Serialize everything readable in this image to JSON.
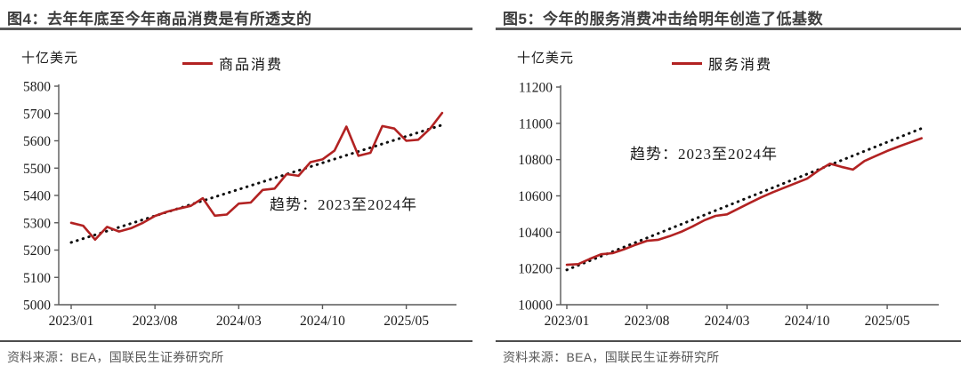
{
  "panels": [
    {
      "title": "图4：去年年底至今年商品消费是有所透支的",
      "unit_label": "十亿美元",
      "legend": "商品消费",
      "annotation": "趋势：2023至2024年",
      "source": "资料来源：BEA，国联民生证券研究所"
    },
    {
      "title": "图5：今年的服务消费冲击给明年创造了低基数",
      "unit_label": "十亿美元",
      "legend": "服务消费",
      "annotation": "趋势：2023至2024年",
      "source": "资料来源：BEA，国联民生证券研究所"
    }
  ],
  "colors": {
    "line_red": "#B22222",
    "trend_black": "#0d0d0d",
    "axis": "#595959",
    "tick_text": "#1a1a1a",
    "title_gray": "#3d3d3d",
    "source_gray": "#595959"
  },
  "chart_data": [
    {
      "type": "line",
      "title": "去年年底至今年商品消费是有所透支的",
      "ylabel": "十亿美元",
      "ylim": [
        5000,
        5800
      ],
      "y_ticks": [
        5000,
        5100,
        5200,
        5300,
        5400,
        5500,
        5600,
        5700,
        5800
      ],
      "x_start": "2023/01",
      "x_end": "2025/08",
      "n_points": 32,
      "x_tick_labels": [
        "2023/01",
        "2023/08",
        "2024/03",
        "2024/10",
        "2025/05"
      ],
      "x_tick_indices": [
        0,
        7,
        14,
        21,
        28
      ],
      "grid": false,
      "legend_position": "top",
      "series": [
        {
          "name": "商品消费",
          "values": [
            5300,
            5289,
            5238,
            5285,
            5268,
            5280,
            5300,
            5325,
            5340,
            5352,
            5362,
            5390,
            5326,
            5330,
            5370,
            5374,
            5420,
            5425,
            5478,
            5472,
            5522,
            5532,
            5564,
            5652,
            5545,
            5556,
            5654,
            5645,
            5600,
            5604,
            5645,
            5702
          ]
        }
      ],
      "trend": {
        "label": "趋势：2023至2024年",
        "style": "dotted",
        "start_value": 5228,
        "end_value": 5658
      }
    },
    {
      "type": "line",
      "title": "今年的服务消费冲击给明年创造了低基数",
      "ylabel": "十亿美元",
      "ylim": [
        10000,
        11200
      ],
      "y_ticks": [
        10000,
        10200,
        10400,
        10600,
        10800,
        11000,
        11200
      ],
      "x_start": "2023/01",
      "x_end": "2025/08",
      "n_points": 32,
      "x_tick_labels": [
        "2023/01",
        "2023/08",
        "2024/03",
        "2024/10",
        "2025/05"
      ],
      "x_tick_indices": [
        0,
        7,
        14,
        21,
        28
      ],
      "grid": false,
      "legend_position": "top",
      "series": [
        {
          "name": "服务消费",
          "values": [
            10220,
            10224,
            10252,
            10278,
            10284,
            10305,
            10330,
            10352,
            10358,
            10378,
            10402,
            10432,
            10465,
            10490,
            10498,
            10530,
            10562,
            10592,
            10620,
            10645,
            10670,
            10695,
            10740,
            10778,
            10760,
            10745,
            10792,
            10820,
            10848,
            10872,
            10895,
            10918
          ]
        }
      ],
      "trend": {
        "label": "趋势：2023至2024年",
        "style": "dotted",
        "start_value": 10192,
        "end_value": 10972
      }
    }
  ]
}
